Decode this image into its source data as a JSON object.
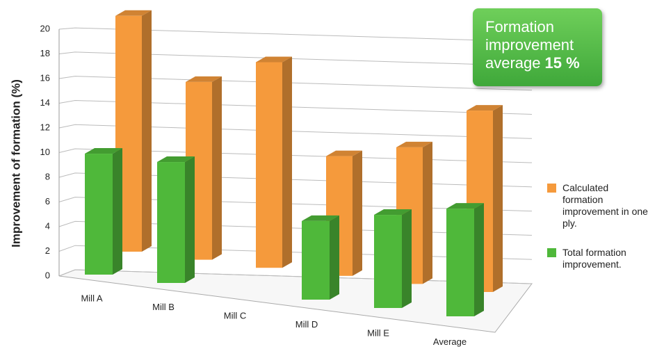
{
  "chart_data": {
    "type": "bar3d",
    "y_label": "Improvement of formation  (%)",
    "annotation": {
      "text": "Formation improvement average",
      "highlight": "15 %"
    },
    "categories": [
      "Mill A",
      "Mill B",
      "Mill C",
      "Mill D",
      "Mill E",
      "Average"
    ],
    "series": [
      {
        "name": "Calculated formation improvement in one ply.",
        "color": "#f59a3c",
        "values": [
          19.5,
          14.7,
          17,
          9.9,
          11.3,
          15
        ]
      },
      {
        "name": "Total formation improvement.",
        "color": "#4fb83a",
        "values": [
          10,
          10,
          null,
          6.5,
          7.7,
          8.9
        ]
      }
    ],
    "ylim": [
      0,
      20
    ],
    "yticks": [
      0,
      2,
      4,
      6,
      8,
      10,
      12,
      14,
      16,
      18,
      20
    ],
    "grid": true
  }
}
